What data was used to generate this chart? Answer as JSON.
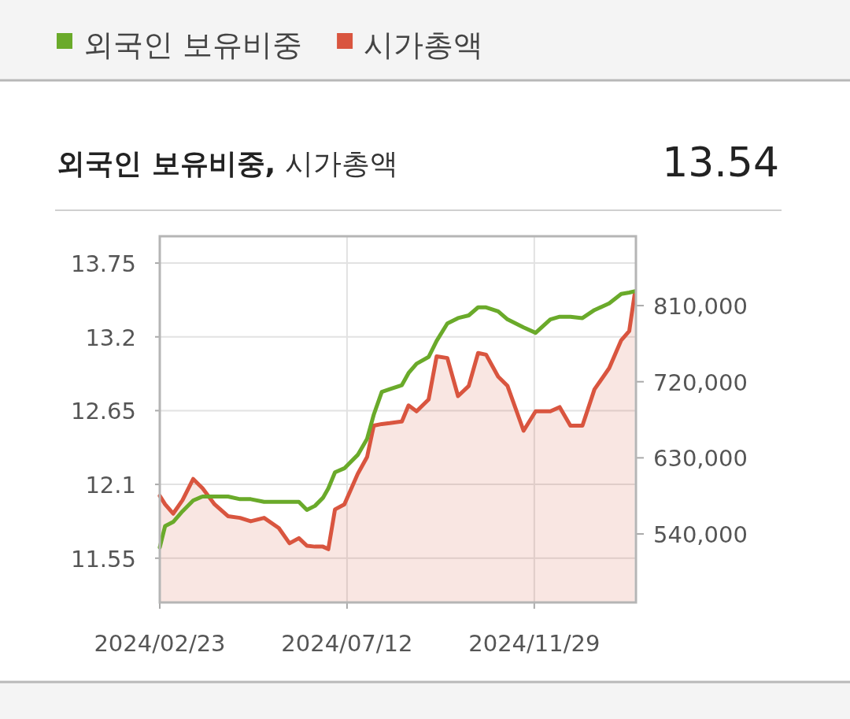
{
  "chart_data": {
    "type": "line",
    "title": "**외국인 보유비중,** 시가총액",
    "annotations": [
      "13.54"
    ],
    "x": [
      "2024-02-23",
      "2024-02-27",
      "2024-03-04",
      "2024-03-11",
      "2024-03-19",
      "2024-03-26",
      "2024-04-04",
      "2024-04-14",
      "2024-04-23",
      "2024-05-01",
      "2024-05-11",
      "2024-05-22",
      "2024-05-30",
      "2024-06-06",
      "2024-06-12",
      "2024-06-18",
      "2024-06-24",
      "2024-06-28",
      "2024-07-03",
      "2024-07-10",
      "2024-07-20",
      "2024-07-27",
      "2024-08-01",
      "2024-08-07",
      "2024-08-13",
      "2024-08-22",
      "2024-08-27",
      "2024-09-02",
      "2024-09-11",
      "2024-09-17",
      "2024-09-25",
      "2024-10-03",
      "2024-10-11",
      "2024-10-18",
      "2024-10-24",
      "2024-11-02",
      "2024-11-09",
      "2024-11-21",
      "2024-11-30",
      "2024-12-11",
      "2024-12-18",
      "2024-12-26",
      "2025-01-04",
      "2025-01-13",
      "2025-01-24",
      "2025-02-02",
      "2025-02-08",
      "2025-02-12"
    ],
    "series": [
      {
        "name": "외국인 보유비중",
        "color": "#6aaa2a",
        "values": [
          11.63,
          11.79,
          11.82,
          11.9,
          11.98,
          12.01,
          12.01,
          12.01,
          11.99,
          11.99,
          11.97,
          11.97,
          11.97,
          11.97,
          11.91,
          11.94,
          12.0,
          12.07,
          12.19,
          12.22,
          12.32,
          12.44,
          12.62,
          12.79,
          12.81,
          12.84,
          12.93,
          13.0,
          13.05,
          13.17,
          13.3,
          13.34,
          13.36,
          13.42,
          13.42,
          13.39,
          13.33,
          13.27,
          13.23,
          13.33,
          13.35,
          13.35,
          13.34,
          13.4,
          13.45,
          13.52,
          13.53,
          13.54
        ]
      },
      {
        "name": "시가총액",
        "type": "area",
        "axis": "y2",
        "color": "#d9553f",
        "values": [
          585000,
          575000,
          564000,
          580000,
          605000,
          594000,
          575000,
          561000,
          559000,
          555000,
          559000,
          547000,
          529000,
          535000,
          526000,
          525000,
          525000,
          522000,
          569000,
          575000,
          611000,
          631000,
          668000,
          670000,
          671000,
          673000,
          692000,
          685000,
          699000,
          750000,
          748000,
          703000,
          715000,
          754000,
          752000,
          726000,
          715000,
          662000,
          685000,
          685000,
          690000,
          668000,
          668000,
          711000,
          736000,
          769000,
          780000,
          823000
        ]
      }
    ],
    "xlim": [
      "2024-02-23",
      "2025-02-13"
    ],
    "xticks": [
      {
        "value": "2024-02-23",
        "label": "2024/02/23"
      },
      {
        "value": "2024-07-12",
        "label": "2024/07/12"
      },
      {
        "value": "2024-11-29",
        "label": "2024/11/29"
      }
    ],
    "ylim": [
      11.22,
      13.95
    ],
    "yticks": [
      11.55,
      12.1,
      12.65,
      13.2,
      13.75
    ],
    "y2lim": [
      459000,
      892000
    ],
    "y2ticks": [
      {
        "value": 540000,
        "label": "540,000"
      },
      {
        "value": 630000,
        "label": "630,000"
      },
      {
        "value": 720000,
        "label": "720,000"
      },
      {
        "value": 810000,
        "label": "810,000"
      }
    ],
    "grid": true,
    "legend": "top"
  }
}
